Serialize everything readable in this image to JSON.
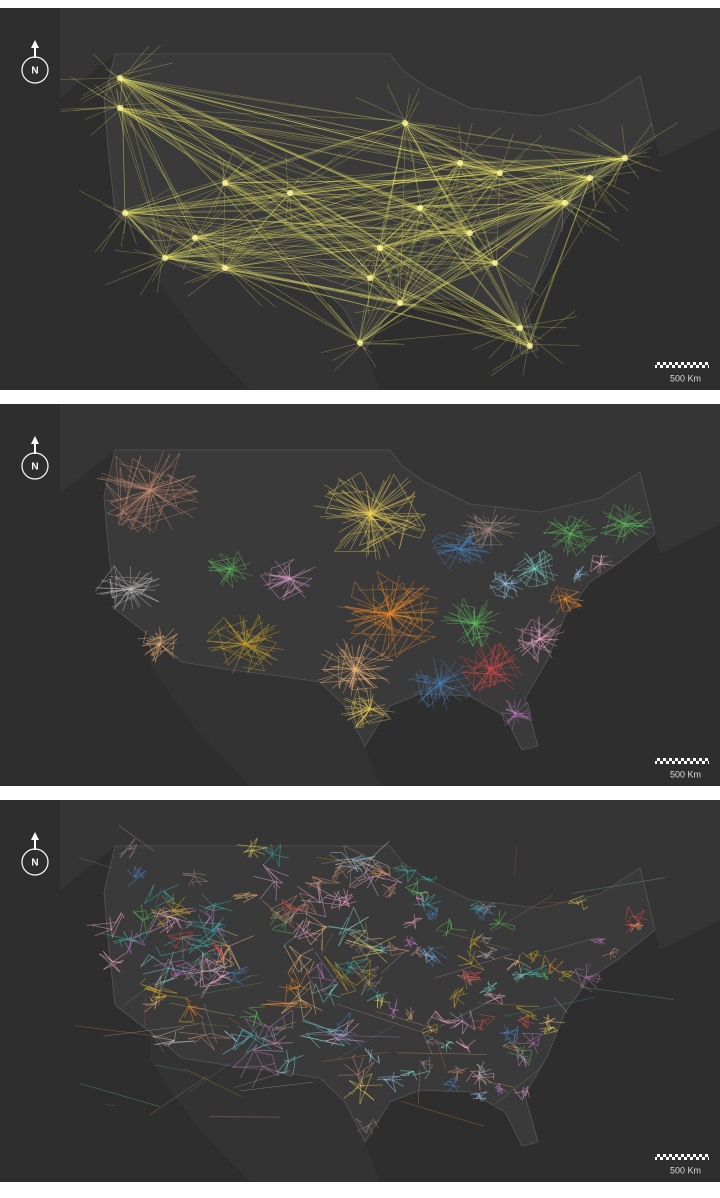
{
  "panels": [
    {
      "compass": "N",
      "scale": "500 Km"
    },
    {
      "compass": "N",
      "scale": "500 Km"
    },
    {
      "compass": "N",
      "scale": "500 Km"
    }
  ]
}
